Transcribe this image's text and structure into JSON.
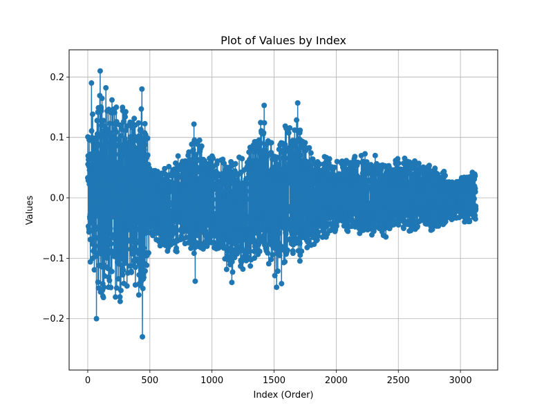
{
  "chart_data": {
    "type": "line",
    "title": "Plot of Values by Index",
    "xlabel": "Index (Order)",
    "ylabel": "Values",
    "xlim": [
      -150,
      3300
    ],
    "ylim": [
      -0.285,
      0.245
    ],
    "x_ticks": [
      0,
      500,
      1000,
      1500,
      2000,
      2500,
      3000
    ],
    "x_tick_labels": [
      "0",
      "500",
      "1000",
      "1500",
      "2000",
      "2500",
      "3000"
    ],
    "y_ticks": [
      -0.2,
      -0.1,
      0.0,
      0.1,
      0.2
    ],
    "y_tick_labels": [
      "−0.2",
      "−0.1",
      "0.0",
      "0.1",
      "0.2"
    ],
    "grid": true,
    "line_color": "#1f77b4",
    "marker": "circle",
    "n_points": 3125,
    "envelope": [
      {
        "x": 0,
        "hi": 0.14,
        "lo": -0.13
      },
      {
        "x": 100,
        "hi": 0.21,
        "lo": -0.2
      },
      {
        "x": 240,
        "hi": 0.18,
        "lo": -0.19
      },
      {
        "x": 400,
        "hi": 0.18,
        "lo": -0.16
      },
      {
        "x": 440,
        "hi": 0.22,
        "lo": -0.26
      },
      {
        "x": 500,
        "hi": 0.07,
        "lo": -0.07
      },
      {
        "x": 600,
        "hi": 0.06,
        "lo": -0.1
      },
      {
        "x": 800,
        "hi": 0.09,
        "lo": -0.1
      },
      {
        "x": 850,
        "hi": 0.12,
        "lo": -0.14
      },
      {
        "x": 1000,
        "hi": 0.09,
        "lo": -0.1
      },
      {
        "x": 1150,
        "hi": 0.08,
        "lo": -0.14
      },
      {
        "x": 1250,
        "hi": 0.08,
        "lo": -0.135
      },
      {
        "x": 1420,
        "hi": 0.153,
        "lo": -0.11
      },
      {
        "x": 1520,
        "hi": 0.11,
        "lo": -0.15
      },
      {
        "x": 1560,
        "hi": 0.13,
        "lo": -0.142
      },
      {
        "x": 1690,
        "hi": 0.157,
        "lo": -0.125
      },
      {
        "x": 1800,
        "hi": 0.09,
        "lo": -0.1
      },
      {
        "x": 2000,
        "hi": 0.07,
        "lo": -0.065
      },
      {
        "x": 2200,
        "hi": 0.083,
        "lo": -0.07
      },
      {
        "x": 2300,
        "hi": 0.08,
        "lo": -0.08
      },
      {
        "x": 2500,
        "hi": 0.075,
        "lo": -0.07
      },
      {
        "x": 2800,
        "hi": 0.063,
        "lo": -0.062
      },
      {
        "x": 2950,
        "hi": 0.035,
        "lo": -0.04
      },
      {
        "x": 3110,
        "hi": 0.055,
        "lo": -0.052
      }
    ],
    "extremes": [
      {
        "x": 30,
        "y": 0.19
      },
      {
        "x": 100,
        "y": 0.21
      },
      {
        "x": 440,
        "y": 0.22
      },
      {
        "x": 70,
        "y": -0.2
      },
      {
        "x": 440,
        "y": -0.26
      },
      {
        "x": 440,
        "y": -0.23
      },
      {
        "x": 1420,
        "y": 0.153
      },
      {
        "x": 1690,
        "y": 0.157
      },
      {
        "x": 855,
        "y": 0.122
      },
      {
        "x": 1560,
        "y": 0.128
      },
      {
        "x": 865,
        "y": -0.138
      },
      {
        "x": 1520,
        "y": -0.148
      },
      {
        "x": 1560,
        "y": -0.142
      },
      {
        "x": 1160,
        "y": -0.14
      }
    ]
  }
}
